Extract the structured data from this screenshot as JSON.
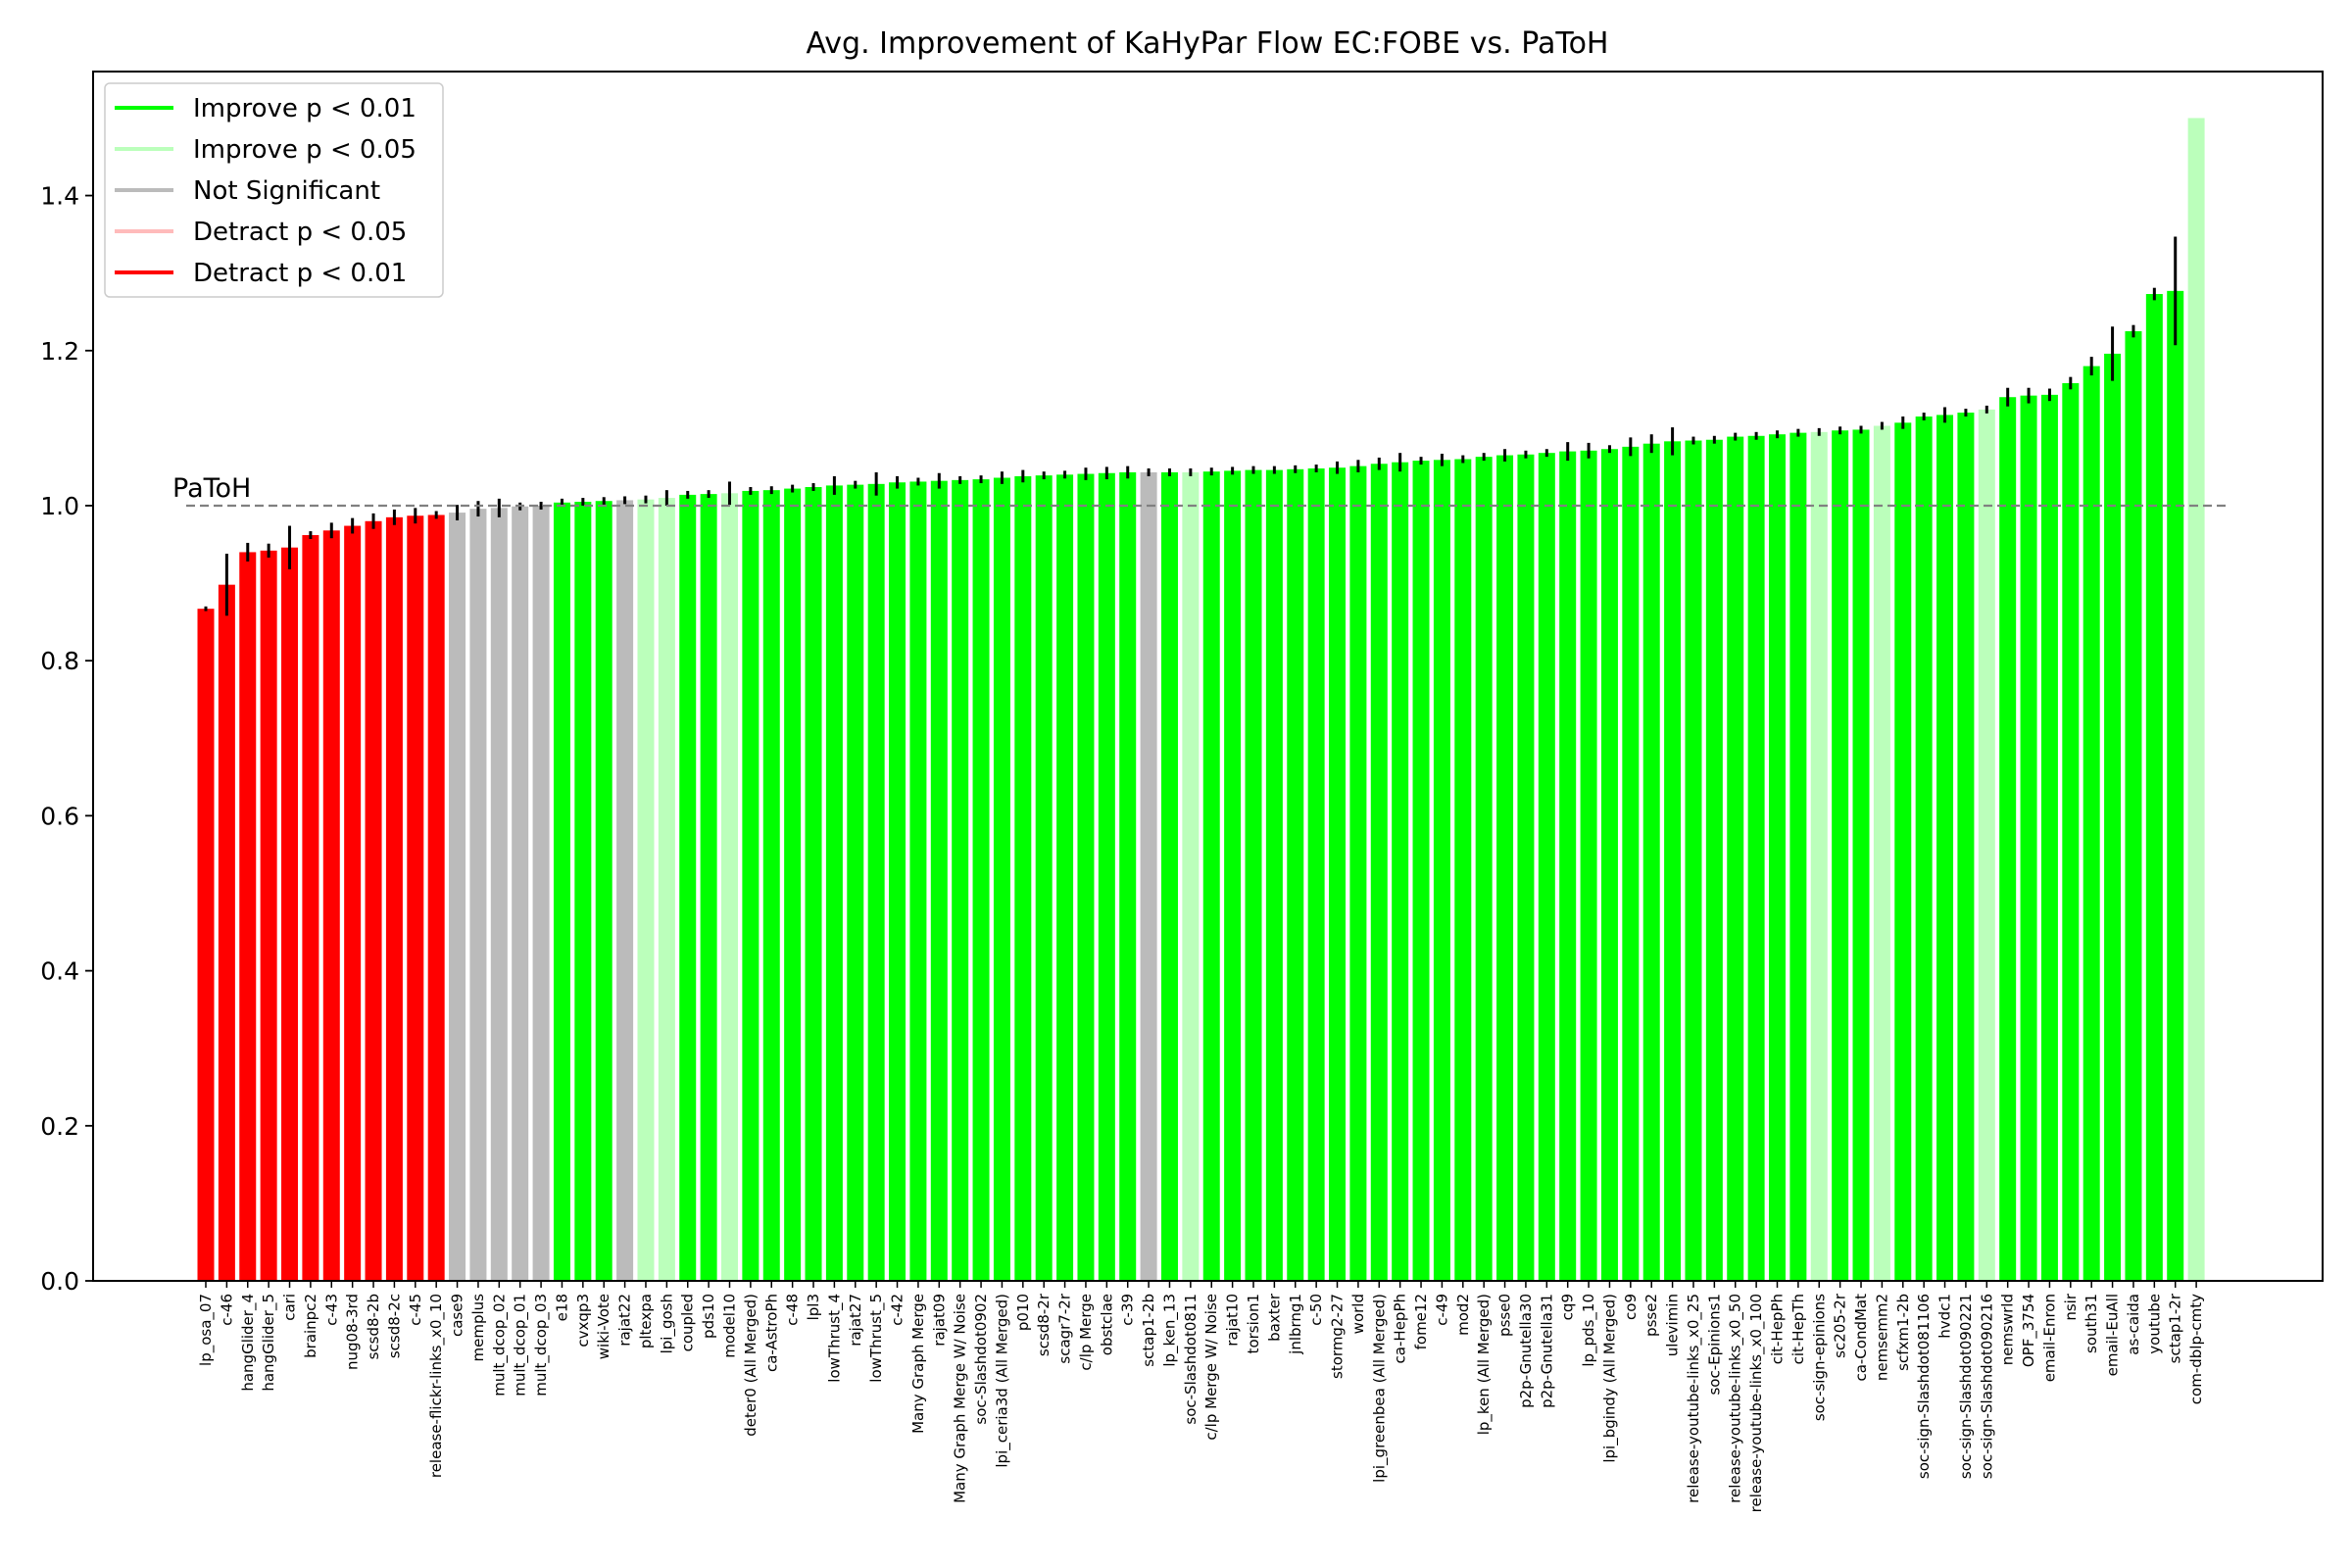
{
  "chart_data": {
    "type": "bar",
    "title": "Avg. Improvement of KaHyPar Flow EC:FOBE vs. PaToH",
    "xlabel": "",
    "ylabel": "",
    "ylim": [
      0,
      1.56
    ],
    "yticks": [
      "0.0",
      "0.2",
      "0.4",
      "0.6",
      "0.8",
      "1.0",
      "1.2",
      "1.4"
    ],
    "reference_line": {
      "value": 1.0,
      "label": "PaToH",
      "style": "dashed",
      "color": "#808080"
    },
    "legend": {
      "placement": "top-left",
      "entries": [
        {
          "key": "imp01",
          "label": "Improve p < 0.01",
          "color": "#00ff00"
        },
        {
          "key": "imp05",
          "label": "Improve p < 0.05",
          "color": "#bbffbb"
        },
        {
          "key": "ns",
          "label": "Not Significant",
          "color": "#bbbbbb"
        },
        {
          "key": "det05",
          "label": "Detract p < 0.05",
          "color": "#ffbbbb"
        },
        {
          "key": "det01",
          "label": "Detract p < 0.01",
          "color": "#ff0000"
        }
      ]
    },
    "categories": [
      "lp_osa_07",
      "c-46",
      "hangGlider_4",
      "hangGlider_5",
      "cari",
      "brainpc2",
      "c-43",
      "nug08-3rd",
      "scsd8-2b",
      "scsd8-2c",
      "c-45",
      "release-flickr-links_x0_10",
      "case9",
      "memplus",
      "mult_dcop_02",
      "mult_dcop_01",
      "mult_dcop_03",
      "e18",
      "cvxqp3",
      "wiki-Vote",
      "rajat22",
      "pltexpa",
      "lpi_gosh",
      "coupled",
      "pds10",
      "model10",
      "deter0 (All Merged)",
      "ca-AstroPh",
      "c-48",
      "lpl3",
      "lowThrust_4",
      "rajat27",
      "lowThrust_5",
      "c-42",
      "Many Graph Merge",
      "rajat09",
      "Many Graph Merge W/ Noise",
      "soc-Slashdot0902",
      "lpi_ceria3d (All Merged)",
      "p010",
      "scsd8-2r",
      "scagr7-2r",
      "c/lp Merge",
      "obstclae",
      "c-39",
      "sctap1-2b",
      "lp_ken_13",
      "soc-Slashdot0811",
      "c/lp Merge W/ Noise",
      "rajat10",
      "torsion1",
      "baxter",
      "jnlbrng1",
      "c-50",
      "stormg2-27",
      "world",
      "lpi_greenbea (All Merged)",
      "ca-HepPh",
      "fome12",
      "c-49",
      "mod2",
      "lp_ken (All Merged)",
      "psse0",
      "p2p-Gnutella30",
      "p2p-Gnutella31",
      "cq9",
      "lp_pds_10",
      "lpi_bgindy (All Merged)",
      "co9",
      "psse2",
      "ulevimin",
      "release-youtube-links_x0_25",
      "soc-Epinions1",
      "release-youtube-links_x0_50",
      "release-youtube-links_x0_100",
      "cit-HepPh",
      "cit-HepTh",
      "soc-sign-epinions",
      "sc205-2r",
      "ca-CondMat",
      "nemsemm2",
      "scfxm1-2b",
      "soc-sign-Slashdot081106",
      "hvdc1",
      "soc-sign-Slashdot090221",
      "soc-sign-Slashdot090216",
      "nemswrld",
      "OPF_3754",
      "email-Enron",
      "nsir",
      "south31",
      "email-EuAll",
      "as-caida",
      "youtube",
      "sctap1-2r",
      "com-dblp-cmty"
    ],
    "values": [
      0.867,
      0.898,
      0.94,
      0.942,
      0.946,
      0.962,
      0.968,
      0.974,
      0.98,
      0.985,
      0.987,
      0.988,
      0.991,
      0.996,
      0.997,
      0.999,
      1.0,
      1.004,
      1.005,
      1.006,
      1.007,
      1.008,
      1.01,
      1.014,
      1.015,
      1.016,
      1.019,
      1.02,
      1.022,
      1.024,
      1.026,
      1.027,
      1.028,
      1.03,
      1.031,
      1.032,
      1.033,
      1.034,
      1.036,
      1.038,
      1.039,
      1.04,
      1.041,
      1.042,
      1.043,
      1.043,
      1.043,
      1.043,
      1.044,
      1.045,
      1.046,
      1.046,
      1.047,
      1.048,
      1.049,
      1.051,
      1.054,
      1.056,
      1.058,
      1.059,
      1.06,
      1.063,
      1.065,
      1.066,
      1.068,
      1.07,
      1.071,
      1.073,
      1.076,
      1.08,
      1.083,
      1.084,
      1.085,
      1.089,
      1.09,
      1.092,
      1.094,
      1.095,
      1.097,
      1.098,
      1.103,
      1.107,
      1.115,
      1.117,
      1.12,
      1.124,
      1.14,
      1.142,
      1.143,
      1.158,
      1.18,
      1.196,
      1.225,
      1.273,
      1.277,
      1.5
    ],
    "errors": [
      0.003,
      0.04,
      0.012,
      0.009,
      0.028,
      0.005,
      0.01,
      0.01,
      0.01,
      0.01,
      0.01,
      0.005,
      0.01,
      0.01,
      0.012,
      0.005,
      0.005,
      0.005,
      0.005,
      0.005,
      0.005,
      0.005,
      0.01,
      0.005,
      0.005,
      0.015,
      0.005,
      0.005,
      0.005,
      0.005,
      0.012,
      0.005,
      0.015,
      0.008,
      0.005,
      0.01,
      0.005,
      0.005,
      0.008,
      0.008,
      0.005,
      0.005,
      0.008,
      0.008,
      0.008,
      0.005,
      0.005,
      0.005,
      0.005,
      0.005,
      0.005,
      0.005,
      0.005,
      0.005,
      0.008,
      0.008,
      0.008,
      0.012,
      0.005,
      0.008,
      0.005,
      0.005,
      0.008,
      0.005,
      0.005,
      0.012,
      0.01,
      0.005,
      0.012,
      0.012,
      0.018,
      0.005,
      0.005,
      0.005,
      0.005,
      0.005,
      0.005,
      0.005,
      0.005,
      0.005,
      0.005,
      0.008,
      0.005,
      0.01,
      0.005,
      0.005,
      0.012,
      0.01,
      0.008,
      0.008,
      0.012,
      0.035,
      0.008,
      0.008,
      0.07,
      0.0
    ],
    "significance": [
      "det01",
      "det01",
      "det01",
      "det01",
      "det01",
      "det01",
      "det01",
      "det01",
      "det01",
      "det01",
      "det01",
      "det01",
      "ns",
      "ns",
      "ns",
      "ns",
      "ns",
      "imp01",
      "imp01",
      "imp01",
      "ns",
      "imp05",
      "imp05",
      "imp01",
      "imp01",
      "imp05",
      "imp01",
      "imp01",
      "imp01",
      "imp01",
      "imp01",
      "imp01",
      "imp01",
      "imp01",
      "imp01",
      "imp01",
      "imp01",
      "imp01",
      "imp01",
      "imp01",
      "imp01",
      "imp01",
      "imp01",
      "imp01",
      "imp01",
      "ns",
      "imp01",
      "imp05",
      "imp01",
      "imp01",
      "imp01",
      "imp01",
      "imp01",
      "imp01",
      "imp01",
      "imp01",
      "imp01",
      "imp01",
      "imp01",
      "imp01",
      "imp01",
      "imp01",
      "imp01",
      "imp01",
      "imp01",
      "imp01",
      "imp01",
      "imp01",
      "imp01",
      "imp01",
      "imp01",
      "imp01",
      "imp01",
      "imp01",
      "imp01",
      "imp01",
      "imp01",
      "imp05",
      "imp01",
      "imp01",
      "imp05",
      "imp01",
      "imp01",
      "imp01",
      "imp01",
      "imp05",
      "imp01",
      "imp01",
      "imp01",
      "imp01",
      "imp01",
      "imp01",
      "imp01",
      "imp01",
      "imp01",
      "imp05"
    ]
  }
}
